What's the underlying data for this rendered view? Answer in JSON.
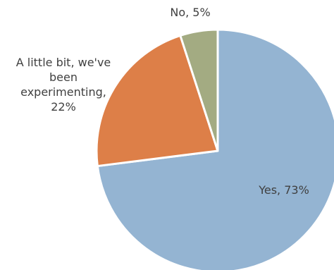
{
  "chart_data": {
    "type": "pie",
    "title": "",
    "slices": [
      {
        "label": "Yes",
        "value": 73,
        "display": "Yes, 73%",
        "color": "#94B4D2"
      },
      {
        "label": "A little bit, we've been experimenting",
        "value": 22,
        "display": "A little bit, we've been experimenting, 22%",
        "color": "#DD7F48"
      },
      {
        "label": "No",
        "value": 5,
        "display": "No, 5%",
        "color": "#A3AB82"
      }
    ],
    "legend": "none",
    "label_lines": [
      [
        "Yes, 73%"
      ],
      [
        "A little bit, we've",
        "been",
        "experimenting,",
        "22%"
      ],
      [
        "No, 5%"
      ]
    ]
  }
}
